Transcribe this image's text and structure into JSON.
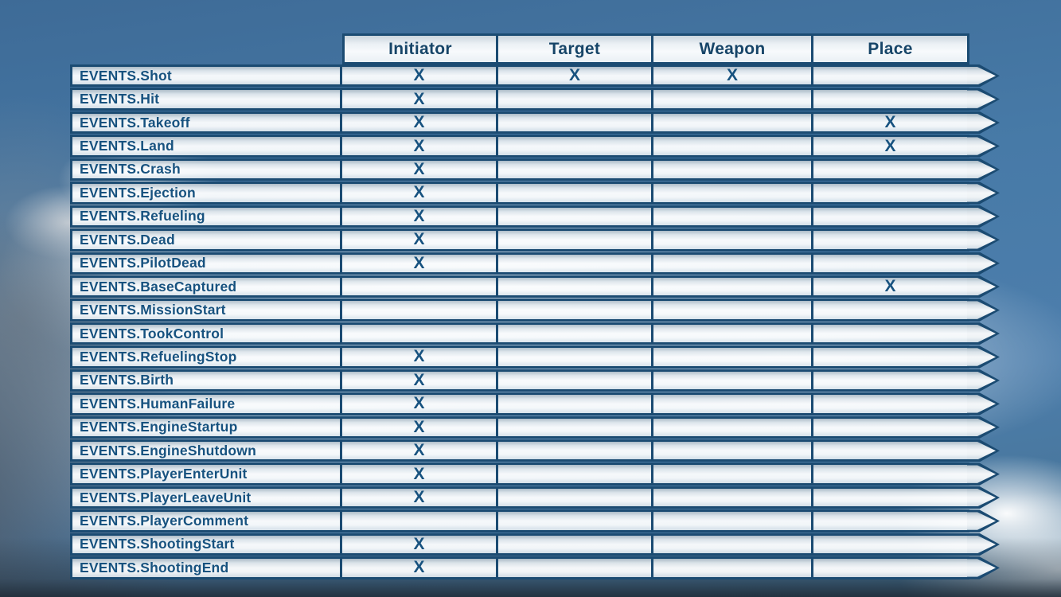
{
  "colors": {
    "table_line": "#1b4b72",
    "text_blue": "#17527f",
    "header_text": "#174568",
    "sky_blue": "#4779a6"
  },
  "table": {
    "columns": [
      "Initiator",
      "Target",
      "Weapon",
      "Place"
    ],
    "rows": [
      {
        "event": "EVENTS.Shot",
        "marks": [
          "X",
          "X",
          "X",
          ""
        ]
      },
      {
        "event": "EVENTS.Hit",
        "marks": [
          "X",
          "",
          "",
          ""
        ]
      },
      {
        "event": "EVENTS.Takeoff",
        "marks": [
          "X",
          "",
          "",
          "X"
        ]
      },
      {
        "event": "EVENTS.Land",
        "marks": [
          "X",
          "",
          "",
          "X"
        ]
      },
      {
        "event": "EVENTS.Crash",
        "marks": [
          "X",
          "",
          "",
          ""
        ]
      },
      {
        "event": "EVENTS.Ejection",
        "marks": [
          "X",
          "",
          "",
          ""
        ]
      },
      {
        "event": "EVENTS.Refueling",
        "marks": [
          "X",
          "",
          "",
          ""
        ]
      },
      {
        "event": "EVENTS.Dead",
        "marks": [
          "X",
          "",
          "",
          ""
        ]
      },
      {
        "event": "EVENTS.PilotDead",
        "marks": [
          "X",
          "",
          "",
          ""
        ]
      },
      {
        "event": "EVENTS.BaseCaptured",
        "marks": [
          "",
          "",
          "",
          "X"
        ]
      },
      {
        "event": "EVENTS.MissionStart",
        "marks": [
          "",
          "",
          "",
          ""
        ]
      },
      {
        "event": "EVENTS.TookControl",
        "marks": [
          "",
          "",
          "",
          ""
        ]
      },
      {
        "event": "EVENTS.RefuelingStop",
        "marks": [
          "X",
          "",
          "",
          ""
        ]
      },
      {
        "event": "EVENTS.Birth",
        "marks": [
          "X",
          "",
          "",
          ""
        ]
      },
      {
        "event": "EVENTS.HumanFailure",
        "marks": [
          "X",
          "",
          "",
          ""
        ]
      },
      {
        "event": "EVENTS.EngineStartup",
        "marks": [
          "X",
          "",
          "",
          ""
        ]
      },
      {
        "event": "EVENTS.EngineShutdown",
        "marks": [
          "X",
          "",
          "",
          ""
        ]
      },
      {
        "event": "EVENTS.PlayerEnterUnit",
        "marks": [
          "X",
          "",
          "",
          ""
        ]
      },
      {
        "event": "EVENTS.PlayerLeaveUnit",
        "marks": [
          "X",
          "",
          "",
          ""
        ]
      },
      {
        "event": "EVENTS.PlayerComment",
        "marks": [
          "",
          "",
          "",
          ""
        ]
      },
      {
        "event": "EVENTS.ShootingStart",
        "marks": [
          "X",
          "",
          "",
          ""
        ]
      },
      {
        "event": "EVENTS.ShootingEnd",
        "marks": [
          "X",
          "",
          "",
          ""
        ]
      }
    ]
  }
}
